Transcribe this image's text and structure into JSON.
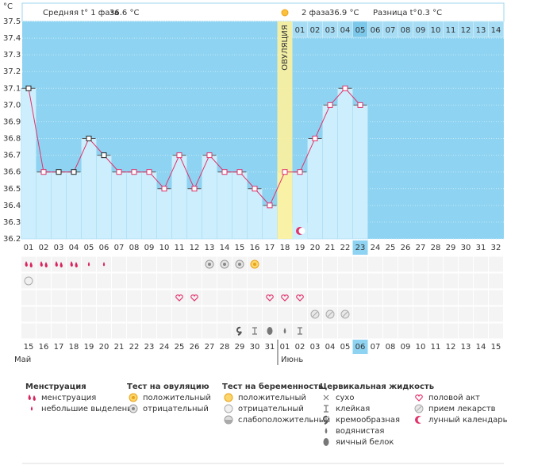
{
  "chart_data": {
    "type": "line",
    "y_unit": "°C",
    "header": {
      "phase1_label": "Средняя t° 1 фаза",
      "phase1_value": "36.6 °C",
      "phase2_label": "2 фаза",
      "phase2_value": "36.9 °C",
      "diff_label": "Разница t°",
      "diff_value": "0.3 °C"
    },
    "ovulation_label": "ОВУЛЯЦИЯ",
    "ovulation_day": 18,
    "categories": [
      "01",
      "02",
      "03",
      "04",
      "05",
      "06",
      "07",
      "08",
      "09",
      "10",
      "11",
      "12",
      "13",
      "14",
      "15",
      "16",
      "17",
      "18",
      "19",
      "20",
      "21",
      "22",
      "23",
      "24",
      "25",
      "26",
      "27",
      "28",
      "29",
      "30",
      "31",
      "32"
    ],
    "phase2_days": [
      "01",
      "02",
      "03",
      "04",
      "05",
      "06",
      "07",
      "08",
      "09",
      "10",
      "11",
      "12",
      "13",
      "14"
    ],
    "series": [
      {
        "name": "t°",
        "color": "#e0336b",
        "values": [
          37.1,
          36.6,
          36.6,
          36.6,
          36.8,
          36.7,
          36.6,
          36.6,
          36.6,
          36.5,
          36.7,
          36.5,
          36.7,
          36.6,
          36.6,
          36.5,
          36.4,
          36.6,
          36.6,
          36.8,
          37.0,
          37.1,
          37.0,
          null,
          null,
          null,
          null,
          null,
          null,
          null,
          null,
          null
        ]
      }
    ],
    "ylim": [
      36.2,
      37.5
    ],
    "yticks": [
      {
        "value": 36.2,
        "label": "36.2"
      },
      {
        "value": 36.3,
        "label": "36.3"
      },
      {
        "value": 36.4,
        "label": "36.4"
      },
      {
        "value": 36.5,
        "label": "36.5"
      },
      {
        "value": 36.6,
        "label": "36.6"
      },
      {
        "value": 36.7,
        "label": "36.7"
      },
      {
        "value": 36.8,
        "label": "36.8"
      },
      {
        "value": 36.9,
        "label": "36.9"
      },
      {
        "value": 37.0,
        "label": "37.0"
      },
      {
        "value": 37.1,
        "label": "37.1"
      },
      {
        "value": 37.2,
        "label": "37.2"
      },
      {
        "value": 37.3,
        "label": "37.3"
      },
      {
        "value": 37.4,
        "label": "37.4"
      },
      {
        "value": 37.5,
        "label": "37.5"
      }
    ],
    "grid": true,
    "dates": [
      "15",
      "16",
      "17",
      "18",
      "19",
      "20",
      "21",
      "22",
      "23",
      "24",
      "25",
      "26",
      "27",
      "28",
      "29",
      "30",
      "31",
      "01",
      "02",
      "03",
      "04",
      "05",
      "06",
      "07",
      "08",
      "09",
      "10",
      "11",
      "12",
      "13",
      "14",
      "15"
    ],
    "date_colors": [
      "#333",
      "#333",
      "#d0245a",
      "#d0245a",
      "#333",
      "#333",
      "#333",
      "#333",
      "#333",
      "#d0245a",
      "#d0245a",
      "#333",
      "#333",
      "#333",
      "#333",
      "#333",
      "#d0245a",
      "#333",
      "#333",
      "#333",
      "#333",
      "#333",
      "#333",
      "#d0245a",
      "#d0245a",
      "#333",
      "#333",
      "#333",
      "#333",
      "#333",
      "#d0245a",
      "#d0245a"
    ],
    "months": [
      "Май",
      "Июнь"
    ],
    "legend": [
      {
        "title": "Менструация",
        "items": [
          "менструация",
          "небольшие выделения"
        ]
      },
      {
        "title": "Тест на овуляцию",
        "items": [
          "положительный",
          "отрицательный"
        ]
      },
      {
        "title": "Тест на беременность",
        "items": [
          "положительный",
          "отрицательный",
          "слабоположительный"
        ]
      },
      {
        "title": "Цервикальная жидкость",
        "items": [
          "сухо",
          "клейкая",
          "кремообразная",
          "водянистая",
          "яичный белок"
        ]
      },
      {
        "items": [
          "половой акт",
          "прием лекарств",
          "лунный календарь"
        ]
      }
    ]
  }
}
